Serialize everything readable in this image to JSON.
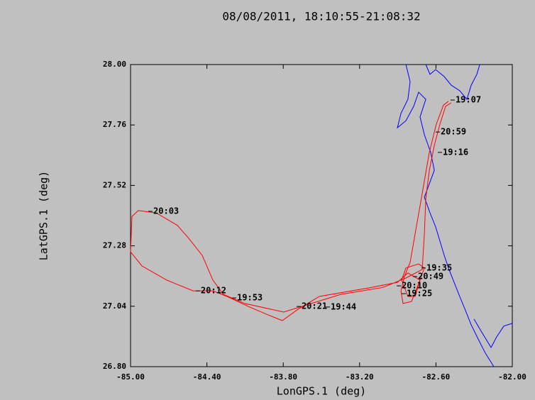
{
  "chart_data": {
    "type": "line",
    "title": "08/08/2011, 18:10:55-21:08:32",
    "x_label": "LonGPS.1 (deg)",
    "y_label": "LatGPS.1 (deg)",
    "xlim": [
      -85,
      -82
    ],
    "ylim": [
      26.8,
      28
    ],
    "xticks": [
      {
        "value": -85,
        "label": "-85.00"
      },
      {
        "value": -84.4,
        "label": "-84.40"
      },
      {
        "value": -83.8,
        "label": "-83.80"
      },
      {
        "value": -83.2,
        "label": "-83.20"
      },
      {
        "value": -82.6,
        "label": "-82.60"
      },
      {
        "value": -82,
        "label": "-82.00"
      }
    ],
    "yticks": [
      {
        "value": 26.8,
        "label": "26.80"
      },
      27.04,
      27.28,
      27.52,
      27.76,
      {
        "value": 28,
        "label": "28.00"
      }
    ],
    "grid": false,
    "series": [
      {
        "color": "#0000ff",
        "x": [
          -82.836,
          -82.803,
          -82.82,
          -82.875,
          -82.903,
          -82.836,
          -82.775,
          -82.736,
          -82.68,
          -82.725,
          -82.691,
          -82.641,
          -82.613,
          -82.658,
          -82.691,
          -82.647,
          -82.602,
          -82.569,
          -82.535,
          -82.502,
          -82.457,
          -82.413,
          -82.368,
          -82.323,
          -82.268,
          -82.212,
          -82.145,
          null,
          -82.68,
          -82.647,
          -82.602,
          -82.535,
          -82.48,
          -82.413,
          -82.357,
          -82.323,
          -82.279,
          -82.256,
          null,
          -82.301,
          -82.234,
          -82.167,
          -82.123,
          -82.067,
          -82.0
        ],
        "values": [
          28.0,
          27.932,
          27.862,
          27.806,
          27.749,
          27.777,
          27.834,
          27.89,
          27.862,
          27.792,
          27.721,
          27.651,
          27.58,
          27.518,
          27.473,
          27.411,
          27.355,
          27.299,
          27.242,
          27.192,
          27.135,
          27.079,
          27.023,
          26.966,
          26.91,
          26.854,
          26.8,
          null,
          28.0,
          27.961,
          27.98,
          27.952,
          27.918,
          27.896,
          27.862,
          27.918,
          27.961,
          28.0,
          null,
          26.989,
          26.932,
          26.876,
          26.918,
          26.961,
          26.972
        ]
      },
      {
        "color": "#ff0000",
        "x": [
          -82.502,
          -82.541,
          -82.597,
          -82.652,
          -82.691,
          -82.725,
          -82.764,
          -82.803,
          -82.848,
          -82.875,
          -82.859,
          -82.792,
          -82.736,
          -82.691,
          -82.736,
          -82.836,
          -82.87,
          -82.82,
          -82.764,
          -82.725,
          -82.82,
          -82.903,
          -83.126,
          -83.517,
          -83.684,
          -83.807,
          -83.907,
          -84.074,
          -84.242,
          -84.353,
          -84.509,
          -84.716,
          -84.911,
          -85.0,
          -84.989,
          -84.939,
          -84.799,
          -84.632,
          -84.548,
          -84.437,
          -84.353,
          -84.27,
          -84.102,
          -83.796,
          -83.349,
          -83.015,
          -82.836,
          -82.708,
          -82.691,
          -82.68,
          -82.652,
          -82.613,
          -82.569,
          -82.524,
          -82.48
        ],
        "values": [
          27.854,
          27.839,
          27.763,
          27.651,
          27.538,
          27.439,
          27.327,
          27.214,
          27.158,
          27.101,
          27.051,
          27.059,
          27.13,
          27.192,
          27.208,
          27.192,
          27.144,
          27.079,
          27.079,
          27.144,
          27.172,
          27.135,
          27.113,
          27.079,
          27.028,
          26.983,
          27.003,
          27.039,
          27.079,
          27.101,
          27.101,
          27.144,
          27.2,
          27.256,
          27.397,
          27.42,
          27.411,
          27.361,
          27.313,
          27.242,
          27.144,
          27.087,
          27.051,
          27.017,
          27.087,
          27.115,
          27.152,
          27.186,
          27.327,
          27.468,
          27.58,
          27.679,
          27.763,
          27.834,
          27.848
        ]
      }
    ],
    "annotations": [
      {
        "text": "20:03",
        "x": -84.827,
        "y": 27.417
      },
      {
        "text": "20:12",
        "x": -84.454,
        "y": 27.101
      },
      {
        "text": "19:53",
        "x": -84.169,
        "y": 27.073
      },
      {
        "text": "20:21",
        "x": -83.662,
        "y": 27.039
      },
      {
        "text": "19:44",
        "x": -83.433,
        "y": 27.037
      },
      {
        "text": "19:35",
        "x": -82.68,
        "y": 27.192
      },
      {
        "text": "20:49",
        "x": -82.747,
        "y": 27.158
      },
      {
        "text": "20:10",
        "x": -82.875,
        "y": 27.121
      },
      {
        "text": "19:25",
        "x": -82.836,
        "y": 27.09
      },
      {
        "text": "20:59",
        "x": -82.569,
        "y": 27.732
      },
      {
        "text": "19:16",
        "x": -82.552,
        "y": 27.651
      },
      {
        "text": "19:07",
        "x": -82.452,
        "y": 27.859
      }
    ]
  }
}
